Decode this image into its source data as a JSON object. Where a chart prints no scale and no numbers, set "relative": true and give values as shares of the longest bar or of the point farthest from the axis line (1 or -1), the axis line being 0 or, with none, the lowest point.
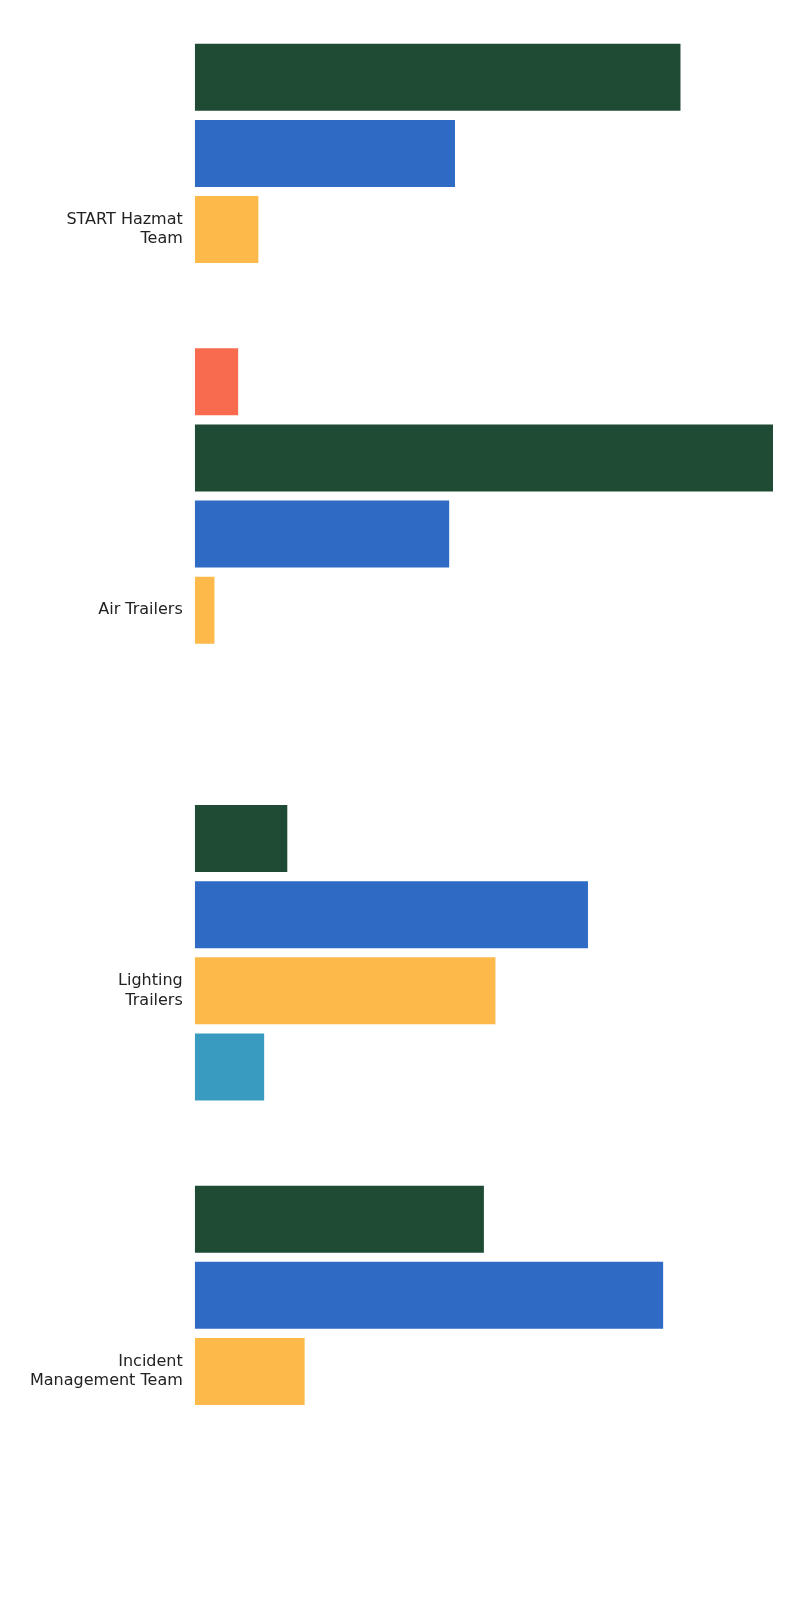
{
  "chart_data": {
    "type": "bar",
    "orientation": "horizontal",
    "relative": true,
    "categories": [
      "START Hazmat Team",
      "Air Trailers",
      "Lighting Trailers",
      "Incident Management Team"
    ],
    "series": [
      {
        "color": "#1f4a33",
        "values": [
          0.84,
          1,
          0.16,
          0.5
        ]
      },
      {
        "color": "#2f6bc4",
        "values": [
          0.45,
          0.44,
          0.68,
          0.81
        ]
      },
      {
        "color": "#fdb94a",
        "values": [
          0.11,
          0.034,
          0.52,
          0.19
        ]
      },
      {
        "color": "#3a9bc0",
        "values": [
          null,
          null,
          0.12,
          null
        ]
      },
      {
        "color": "#f96b4e",
        "values": [
          0.075,
          null,
          null,
          null
        ]
      }
    ]
  }
}
